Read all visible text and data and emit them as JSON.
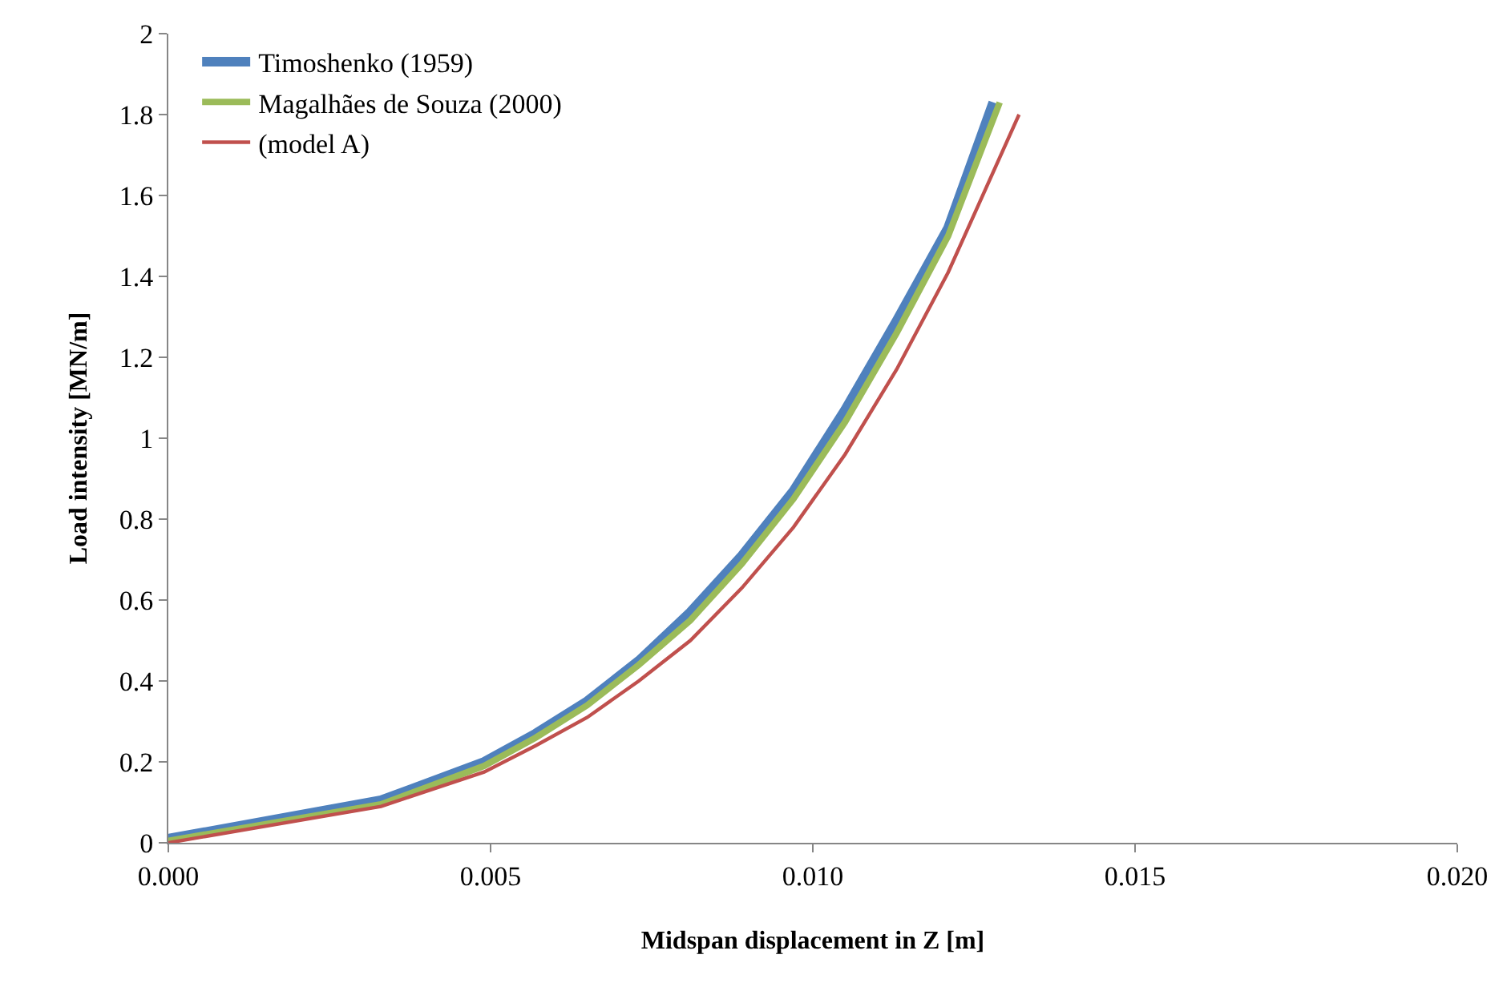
{
  "chart_data": {
    "type": "line",
    "xlabel": "Midspan displacement in Z [m]",
    "ylabel": "Load intensity [MN/m]",
    "xlim": [
      0,
      0.02
    ],
    "xticks": [
      {
        "value": 0,
        "label": "0.000"
      },
      {
        "value": 0.005,
        "label": "0.005"
      },
      {
        "value": 0.01,
        "label": "0.010"
      },
      {
        "value": 0.015,
        "label": "0.015"
      },
      {
        "value": 0.02,
        "label": "0.020"
      }
    ],
    "ylim": [
      0,
      2
    ],
    "yticks": [
      0,
      0.2,
      0.4,
      0.6,
      0.8,
      1,
      1.2,
      1.4,
      1.6,
      1.8,
      2
    ],
    "legend": "top left",
    "marker": "none",
    "line_style": "solid",
    "series": [
      {
        "name": "Timoshenko (1959)",
        "color": "#4f81bd",
        "x": [
          0,
          0.0033,
          0.0049,
          0.0057,
          0.0065,
          0.0073,
          0.0081,
          0.0089,
          0.0097,
          0.0105,
          0.0113,
          0.0121,
          0.0128
        ],
        "values": [
          0.01,
          0.105,
          0.2,
          0.27,
          0.35,
          0.45,
          0.57,
          0.71,
          0.87,
          1.07,
          1.29,
          1.52,
          1.83
        ]
      },
      {
        "name": "Magalhães de Souza (2000)",
        "color": "#9bbb59",
        "x": [
          0,
          0.0033,
          0.0049,
          0.0057,
          0.0065,
          0.0073,
          0.0081,
          0.0089,
          0.0097,
          0.0105,
          0.0113,
          0.0121,
          0.0129
        ],
        "values": [
          0.005,
          0.095,
          0.19,
          0.26,
          0.34,
          0.44,
          0.55,
          0.69,
          0.85,
          1.04,
          1.26,
          1.5,
          1.83
        ]
      },
      {
        "name": "(model A)",
        "color": "#c0504d",
        "x": [
          0,
          0.0033,
          0.0049,
          0.0057,
          0.0065,
          0.0073,
          0.0081,
          0.0089,
          0.0097,
          0.0105,
          0.0113,
          0.0121,
          0.0132
        ],
        "values": [
          0,
          0.09,
          0.175,
          0.24,
          0.31,
          0.4,
          0.5,
          0.63,
          0.78,
          0.96,
          1.17,
          1.41,
          1.8
        ]
      }
    ]
  }
}
